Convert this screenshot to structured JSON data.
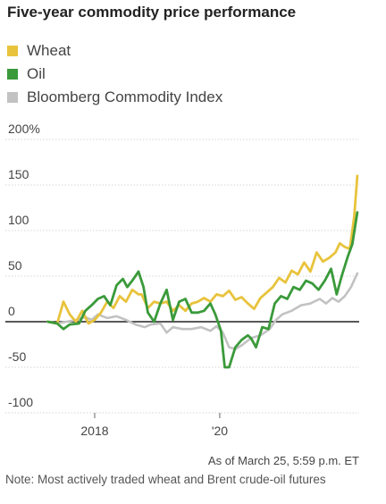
{
  "chart_data": {
    "type": "line",
    "title": "Five-year commodity price performance",
    "xlabel": "",
    "ylabel": "",
    "x_ticks": [
      "2018",
      "'20"
    ],
    "y_ticks": [
      "200%",
      "150",
      "100",
      "50",
      "0",
      "-50",
      "-100"
    ],
    "ylim": [
      -100,
      200
    ],
    "xlim": [
      2017.2,
      2022.23
    ],
    "grid": "horizontal",
    "legend_placement": "top-left",
    "series": [
      {
        "name": "Wheat",
        "color": "#e8c33c",
        "points": [
          [
            2017.25,
            0
          ],
          [
            2017.4,
            -2
          ],
          [
            2017.5,
            22
          ],
          [
            2017.6,
            8
          ],
          [
            2017.7,
            0
          ],
          [
            2017.8,
            12
          ],
          [
            2017.9,
            -2
          ],
          [
            2018.0,
            2
          ],
          [
            2018.1,
            10
          ],
          [
            2018.2,
            22
          ],
          [
            2018.3,
            15
          ],
          [
            2018.4,
            28
          ],
          [
            2018.5,
            22
          ],
          [
            2018.6,
            35
          ],
          [
            2018.7,
            30
          ],
          [
            2018.75,
            30
          ],
          [
            2018.85,
            15
          ],
          [
            2018.95,
            22
          ],
          [
            2019.05,
            20
          ],
          [
            2019.15,
            22
          ],
          [
            2019.25,
            12
          ],
          [
            2019.35,
            18
          ],
          [
            2019.45,
            12
          ],
          [
            2019.55,
            20
          ],
          [
            2019.65,
            22
          ],
          [
            2019.75,
            26
          ],
          [
            2019.85,
            22
          ],
          [
            2019.95,
            30
          ],
          [
            2020.05,
            28
          ],
          [
            2020.15,
            34
          ],
          [
            2020.25,
            24
          ],
          [
            2020.35,
            27
          ],
          [
            2020.45,
            20
          ],
          [
            2020.55,
            14
          ],
          [
            2020.65,
            26
          ],
          [
            2020.75,
            32
          ],
          [
            2020.85,
            38
          ],
          [
            2020.95,
            48
          ],
          [
            2021.05,
            43
          ],
          [
            2021.15,
            56
          ],
          [
            2021.25,
            52
          ],
          [
            2021.35,
            65
          ],
          [
            2021.45,
            55
          ],
          [
            2021.55,
            76
          ],
          [
            2021.65,
            66
          ],
          [
            2021.75,
            70
          ],
          [
            2021.85,
            76
          ],
          [
            2021.92,
            86
          ],
          [
            2022.0,
            82
          ],
          [
            2022.08,
            80
          ],
          [
            2022.15,
            115
          ],
          [
            2022.2,
            160
          ]
        ]
      },
      {
        "name": "Oil",
        "color": "#3a9a3a",
        "points": [
          [
            2017.25,
            0
          ],
          [
            2017.4,
            -2
          ],
          [
            2017.5,
            -8
          ],
          [
            2017.6,
            -3
          ],
          [
            2017.75,
            -2
          ],
          [
            2017.85,
            12
          ],
          [
            2017.95,
            18
          ],
          [
            2018.05,
            25
          ],
          [
            2018.15,
            28
          ],
          [
            2018.25,
            18
          ],
          [
            2018.35,
            40
          ],
          [
            2018.45,
            47
          ],
          [
            2018.52,
            38
          ],
          [
            2018.6,
            45
          ],
          [
            2018.7,
            55
          ],
          [
            2018.78,
            38
          ],
          [
            2018.85,
            10
          ],
          [
            2018.95,
            0
          ],
          [
            2019.05,
            20
          ],
          [
            2019.15,
            35
          ],
          [
            2019.25,
            2
          ],
          [
            2019.35,
            22
          ],
          [
            2019.45,
            25
          ],
          [
            2019.55,
            10
          ],
          [
            2019.65,
            10
          ],
          [
            2019.75,
            12
          ],
          [
            2019.85,
            20
          ],
          [
            2019.93,
            8
          ],
          [
            2020.02,
            -10
          ],
          [
            2020.08,
            -50
          ],
          [
            2020.15,
            -50
          ],
          [
            2020.25,
            -28
          ],
          [
            2020.35,
            -20
          ],
          [
            2020.45,
            -15
          ],
          [
            2020.5,
            -18
          ],
          [
            2020.58,
            -28
          ],
          [
            2020.68,
            -6
          ],
          [
            2020.78,
            -8
          ],
          [
            2020.88,
            20
          ],
          [
            2020.98,
            28
          ],
          [
            2021.08,
            25
          ],
          [
            2021.18,
            38
          ],
          [
            2021.28,
            35
          ],
          [
            2021.38,
            45
          ],
          [
            2021.48,
            42
          ],
          [
            2021.58,
            35
          ],
          [
            2021.68,
            45
          ],
          [
            2021.78,
            58
          ],
          [
            2021.87,
            30
          ],
          [
            2021.95,
            50
          ],
          [
            2022.05,
            72
          ],
          [
            2022.12,
            85
          ],
          [
            2022.2,
            120
          ]
        ]
      },
      {
        "name": "Bloomberg Commodity Index",
        "color": "#c2c2c2",
        "points": [
          [
            2017.25,
            0
          ],
          [
            2017.4,
            -2
          ],
          [
            2017.55,
            0
          ],
          [
            2017.7,
            2
          ],
          [
            2017.85,
            5
          ],
          [
            2017.95,
            2
          ],
          [
            2018.05,
            8
          ],
          [
            2018.2,
            4
          ],
          [
            2018.35,
            6
          ],
          [
            2018.5,
            2
          ],
          [
            2018.65,
            -3
          ],
          [
            2018.8,
            -6
          ],
          [
            2018.9,
            -3
          ],
          [
            2019.05,
            -2
          ],
          [
            2019.15,
            -12
          ],
          [
            2019.25,
            -6
          ],
          [
            2019.4,
            -8
          ],
          [
            2019.55,
            -8
          ],
          [
            2019.7,
            -6
          ],
          [
            2019.85,
            -10
          ],
          [
            2019.95,
            -5
          ],
          [
            2020.05,
            -12
          ],
          [
            2020.15,
            -28
          ],
          [
            2020.25,
            -30
          ],
          [
            2020.35,
            -26
          ],
          [
            2020.5,
            -18
          ],
          [
            2020.65,
            -15
          ],
          [
            2020.8,
            -8
          ],
          [
            2020.9,
            2
          ],
          [
            2021.0,
            8
          ],
          [
            2021.15,
            12
          ],
          [
            2021.3,
            18
          ],
          [
            2021.45,
            20
          ],
          [
            2021.6,
            25
          ],
          [
            2021.7,
            20
          ],
          [
            2021.8,
            26
          ],
          [
            2021.9,
            22
          ],
          [
            2022.0,
            28
          ],
          [
            2022.1,
            38
          ],
          [
            2022.2,
            53
          ]
        ]
      }
    ]
  },
  "footer": {
    "asof": "As of March 25, 5:59 p.m. ET",
    "note": "Note: Most actively traded wheat and Brent crude-oil futures"
  }
}
